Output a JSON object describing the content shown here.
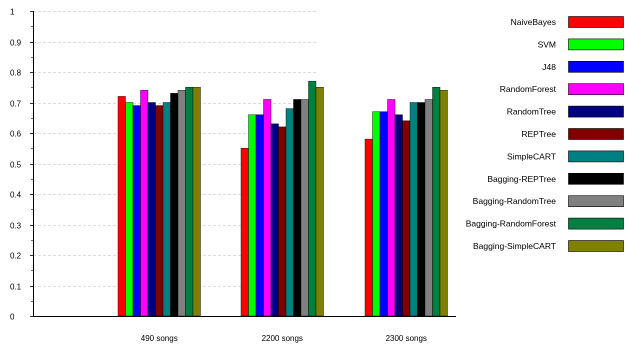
{
  "chart_data": {
    "type": "bar",
    "title": "",
    "xlabel": "",
    "ylabel": "",
    "ylim": [
      0,
      1
    ],
    "yticks": [
      "0",
      "0.1",
      "0.2",
      "0.3",
      "0.4",
      "0.5",
      "0.6",
      "0.7",
      "0.8",
      "0.9",
      "1"
    ],
    "grid": true,
    "legend_position": "right",
    "categories": [
      "490 songs",
      "2200 songs",
      "2300 songs"
    ],
    "series": [
      {
        "name": "NaiveBayes",
        "color": "#ff0000",
        "values": [
          0.72,
          0.55,
          0.58
        ]
      },
      {
        "name": "SVM",
        "color": "#00ff00",
        "values": [
          0.7,
          0.66,
          0.67
        ]
      },
      {
        "name": "J48",
        "color": "#0000ff",
        "values": [
          0.69,
          0.66,
          0.67
        ]
      },
      {
        "name": "RandomForest",
        "color": "#ff00ff",
        "values": [
          0.74,
          0.71,
          0.71
        ]
      },
      {
        "name": "RandomTree",
        "color": "#000080",
        "values": [
          0.7,
          0.63,
          0.66
        ]
      },
      {
        "name": "REPTree",
        "color": "#800000",
        "values": [
          0.69,
          0.62,
          0.64
        ]
      },
      {
        "name": "SimpleCART",
        "color": "#008080",
        "values": [
          0.7,
          0.68,
          0.7
        ]
      },
      {
        "name": "Bagging-REPTree",
        "color": "#000000",
        "values": [
          0.73,
          0.71,
          0.7
        ]
      },
      {
        "name": "Bagging-RandomTree",
        "color": "#808080",
        "values": [
          0.74,
          0.71,
          0.71
        ]
      },
      {
        "name": "Bagging-RandomForest",
        "color": "#008040",
        "values": [
          0.75,
          0.77,
          0.75
        ]
      },
      {
        "name": "Bagging-SimpleCART",
        "color": "#808000",
        "values": [
          0.75,
          0.75,
          0.74
        ]
      }
    ]
  }
}
